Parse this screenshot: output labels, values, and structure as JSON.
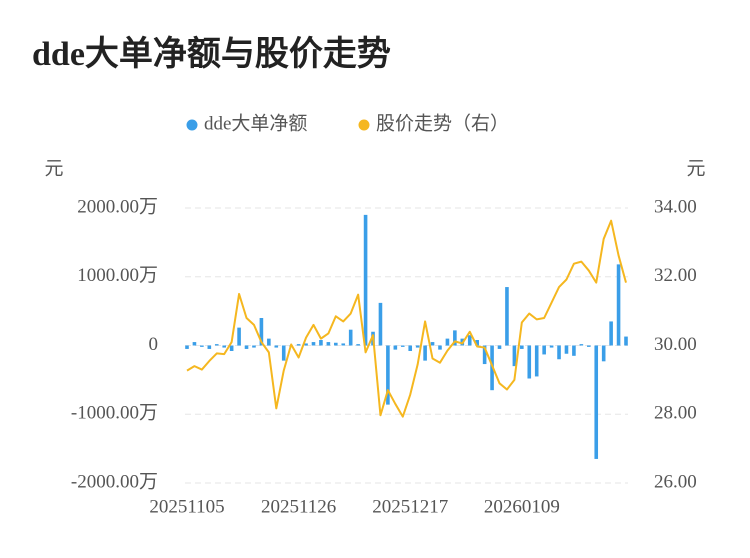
{
  "chart_data": {
    "type": "bar",
    "title": "dde大单净额与股价走势",
    "y_label": "元",
    "y2_label": "元",
    "categories": [
      "20251105",
      null,
      null,
      null,
      null,
      null,
      null,
      null,
      null,
      null,
      null,
      null,
      null,
      null,
      null,
      "20251126",
      null,
      null,
      null,
      null,
      null,
      null,
      null,
      null,
      null,
      null,
      null,
      null,
      null,
      null,
      "20251217",
      null,
      null,
      null,
      null,
      null,
      null,
      null,
      null,
      null,
      null,
      null,
      null,
      null,
      null,
      "20260109",
      null,
      null,
      null,
      null,
      null,
      null,
      null,
      null,
      null,
      null,
      null,
      null,
      null,
      null
    ],
    "series": [
      {
        "name": "dde大单净额",
        "type": "bar",
        "color": "#3a9ee8",
        "values": [
          -50,
          50,
          -20,
          -50,
          20,
          -30,
          -80,
          260,
          -50,
          -30,
          400,
          100,
          -30,
          -220,
          -20,
          20,
          30,
          50,
          80,
          50,
          40,
          30,
          230,
          20,
          1900,
          200,
          620,
          -860,
          -60,
          -20,
          -80,
          -30,
          -220,
          50,
          -60,
          100,
          220,
          100,
          150,
          80,
          -270,
          -650,
          -50,
          850,
          -300,
          -50,
          -480,
          -450,
          -130,
          -30,
          -200,
          -120,
          -150,
          20,
          -20,
          -1650,
          -230,
          350,
          1180,
          130
        ]
      },
      {
        "name": "股价走势（右）",
        "type": "line",
        "axis": "y2",
        "color": "#f5b71f",
        "values": [
          29.27,
          29.4,
          29.3,
          29.55,
          29.77,
          29.75,
          30.1,
          31.5,
          30.8,
          30.6,
          30.1,
          29.8,
          28.17,
          29.27,
          30.03,
          29.65,
          30.23,
          30.6,
          30.2,
          30.35,
          30.85,
          30.7,
          30.93,
          31.48,
          29.8,
          30.3,
          27.97,
          28.7,
          28.3,
          27.93,
          28.57,
          29.45,
          30.7,
          29.62,
          29.5,
          29.85,
          30.12,
          30.06,
          30.4,
          29.97,
          29.94,
          29.42,
          28.9,
          28.72,
          29.0,
          30.67,
          30.93,
          30.76,
          30.8,
          31.25,
          31.7,
          31.92,
          32.38,
          32.44,
          32.18,
          31.83,
          33.1,
          33.63,
          32.62,
          31.83
        ]
      }
    ],
    "ylim": [
      -2000,
      2000
    ],
    "yticks": [
      {
        "value": -2000,
        "label": "-2000.00万"
      },
      {
        "value": -1000,
        "label": "-1000.00万"
      },
      0,
      {
        "value": 1000,
        "label": "1000.00万"
      },
      {
        "value": 2000,
        "label": "2000.00万"
      }
    ],
    "y2lim": [
      26,
      34
    ],
    "y2ticks": [
      {
        "value": 26,
        "label": "26.00"
      },
      {
        "value": 28,
        "label": "28.00"
      },
      {
        "value": 30,
        "label": "30.00"
      },
      {
        "value": 32,
        "label": "32.00"
      },
      {
        "value": 34,
        "label": "34.00"
      }
    ],
    "grid": true,
    "legend": "top"
  }
}
